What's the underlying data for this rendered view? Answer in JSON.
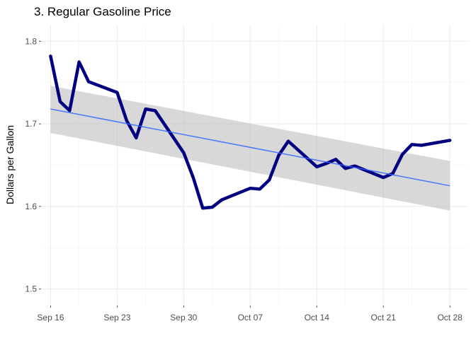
{
  "chart_data": {
    "type": "line",
    "title": "3. Regular Gasoline Price",
    "xlabel": "",
    "ylabel": "Dollars per Gallon",
    "x_tick_labels": [
      "Sep 16",
      "Sep 23",
      "Sep 30",
      "Oct 07",
      "Oct 14",
      "Oct 21",
      "Oct 28"
    ],
    "x_tick_dates": [
      "2019-09-16",
      "2019-09-23",
      "2019-09-30",
      "2019-10-07",
      "2019-10-14",
      "2019-10-21",
      "2019-10-28"
    ],
    "y_ticks": [
      1.5,
      1.6,
      1.7,
      1.8
    ],
    "y_tick_labels": [
      "1.5",
      "1.6",
      "1.7",
      "1.8"
    ],
    "xlim": [
      "2019-09-15",
      "2019-10-30"
    ],
    "ylim": [
      1.48,
      1.82
    ],
    "grid": true,
    "series": [
      {
        "color": "#000080",
        "x": [
          "2019-09-16",
          "2019-09-17",
          "2019-09-18",
          "2019-09-19",
          "2019-09-20",
          "2019-09-23",
          "2019-09-24",
          "2019-09-25",
          "2019-09-26",
          "2019-09-27",
          "2019-09-30",
          "2019-10-01",
          "2019-10-02",
          "2019-10-03",
          "2019-10-04",
          "2019-10-07",
          "2019-10-08",
          "2019-10-09",
          "2019-10-10",
          "2019-10-11",
          "2019-10-14",
          "2019-10-15",
          "2019-10-16",
          "2019-10-17",
          "2019-10-18",
          "2019-10-21",
          "2019-10-22",
          "2019-10-23",
          "2019-10-24",
          "2019-10-25",
          "2019-10-28"
        ],
        "values": [
          1.782,
          1.727,
          1.716,
          1.775,
          1.751,
          1.738,
          1.704,
          1.683,
          1.718,
          1.716,
          1.665,
          1.635,
          1.598,
          1.599,
          1.608,
          1.622,
          1.621,
          1.632,
          1.662,
          1.679,
          1.648,
          1.652,
          1.657,
          1.646,
          1.649,
          1.635,
          1.64,
          1.663,
          1.675,
          1.674,
          1.68
        ]
      }
    ],
    "trend": {
      "method": "linear fit",
      "color": "#3366ff",
      "ribbon_color": "#bebebe",
      "x": [
        "2019-09-16",
        "2019-10-28"
      ],
      "values": [
        1.718,
        1.625
      ],
      "ribbon_lower": [
        1.689,
        1.595
      ],
      "ribbon_upper": [
        1.746,
        1.655
      ]
    }
  }
}
